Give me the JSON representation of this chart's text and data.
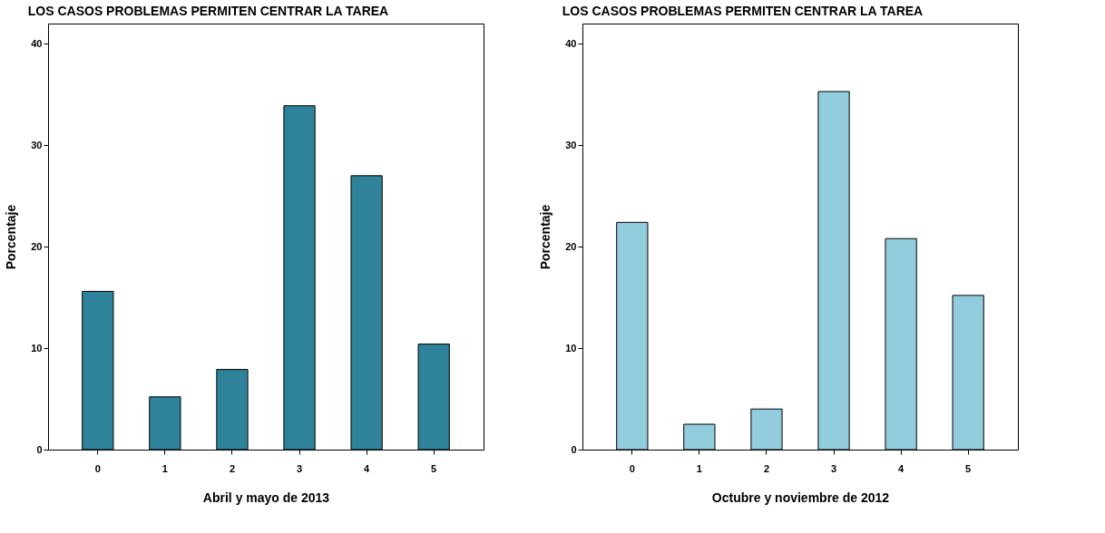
{
  "chart_data": [
    {
      "type": "bar",
      "title": "LOS CASOS PROBLEMAS PERMITEN CENTRAR LA TAREA",
      "xlabel": "Abril y mayo de 2013",
      "ylabel": "Porcentaje",
      "categories": [
        "0",
        "1",
        "2",
        "3",
        "4",
        "5"
      ],
      "values": [
        15.6,
        5.2,
        7.9,
        33.9,
        27.0,
        10.4
      ],
      "color": "#2e8299",
      "ylim": [
        0,
        42
      ],
      "yticks": [
        0,
        10,
        20,
        30,
        40
      ],
      "grid": false
    },
    {
      "type": "bar",
      "title": "LOS CASOS PROBLEMAS PERMITEN CENTRAR LA TAREA",
      "xlabel": "Octubre y noviembre de 2012",
      "ylabel": "Porcentaje",
      "categories": [
        "0",
        "1",
        "2",
        "3",
        "4",
        "5"
      ],
      "values": [
        22.4,
        2.5,
        4.0,
        35.3,
        20.8,
        15.2
      ],
      "color": "#92cddd",
      "ylim": [
        0,
        42
      ],
      "yticks": [
        0,
        10,
        20,
        30,
        40
      ],
      "grid": false
    }
  ]
}
